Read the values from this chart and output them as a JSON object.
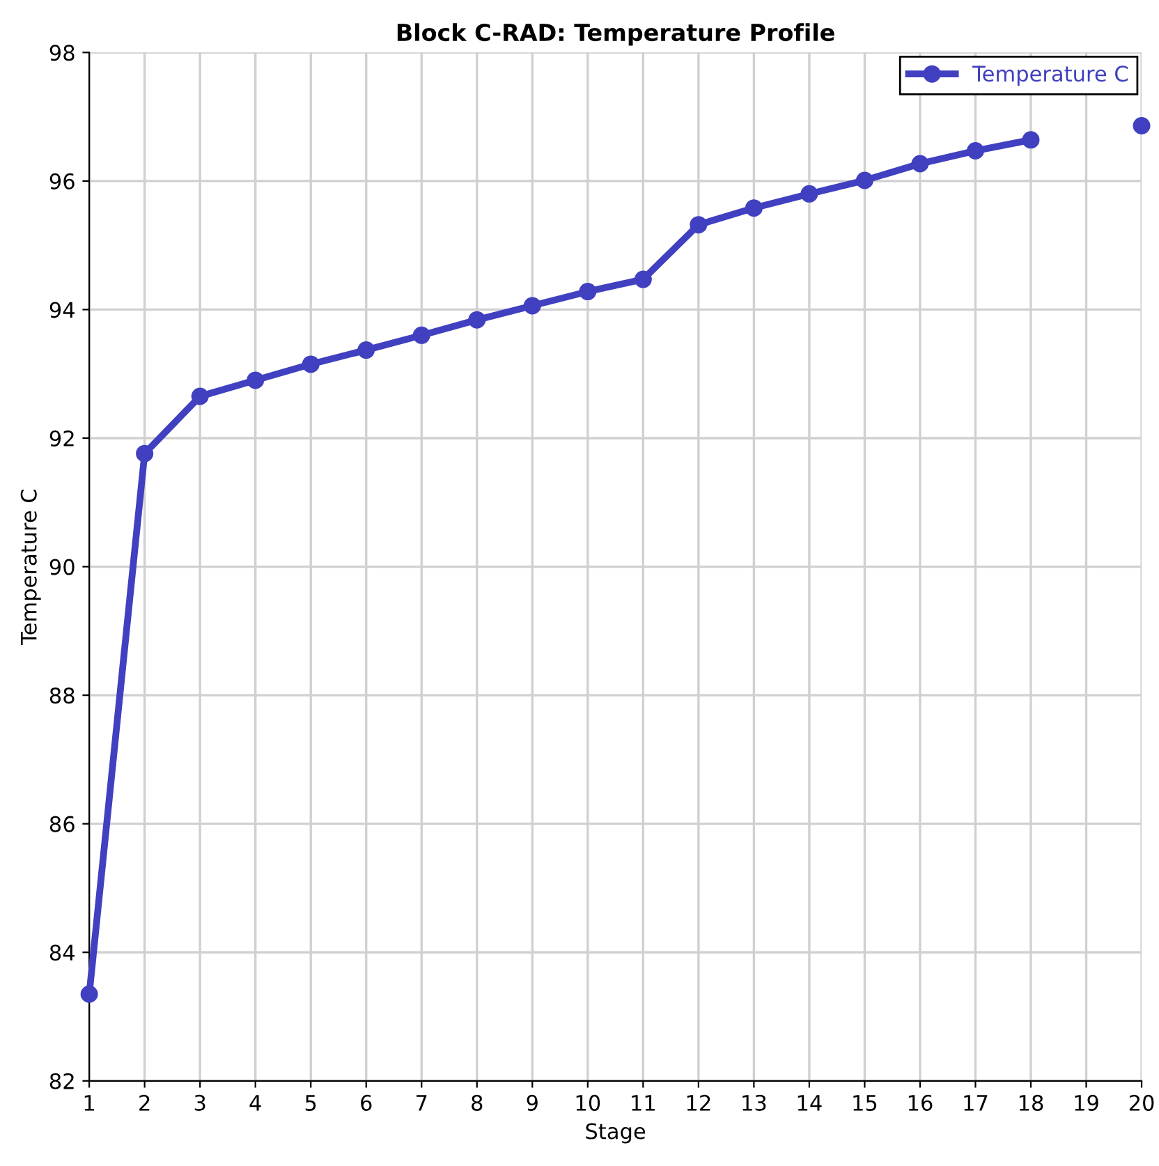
{
  "chart_data": {
    "type": "line",
    "title": "Block C-RAD: Temperature Profile",
    "xlabel": "Stage",
    "ylabel": "Temperature C",
    "x": [
      1,
      2,
      3,
      4,
      5,
      6,
      7,
      8,
      9,
      10,
      11,
      12,
      13,
      14,
      15,
      16,
      17,
      18,
      19,
      20
    ],
    "series": [
      {
        "name": "Temperature C",
        "color": "#4040c0",
        "values": [
          83.35,
          91.76,
          92.65,
          92.9,
          93.15,
          93.37,
          93.6,
          93.84,
          94.06,
          94.28,
          94.47,
          95.32,
          95.58,
          95.8,
          96.01,
          96.27,
          96.47,
          96.64,
          null,
          96.86
        ]
      }
    ],
    "xlim": [
      1,
      20
    ],
    "xticks": [
      1,
      2,
      3,
      4,
      5,
      6,
      7,
      8,
      9,
      10,
      11,
      12,
      13,
      14,
      15,
      16,
      17,
      18,
      19,
      20
    ],
    "ylim": [
      82,
      98
    ],
    "yticks": [
      82,
      84,
      86,
      88,
      90,
      92,
      94,
      96,
      98
    ],
    "grid": true,
    "legend": "top right",
    "marker": "circle",
    "line_style": "solid"
  }
}
